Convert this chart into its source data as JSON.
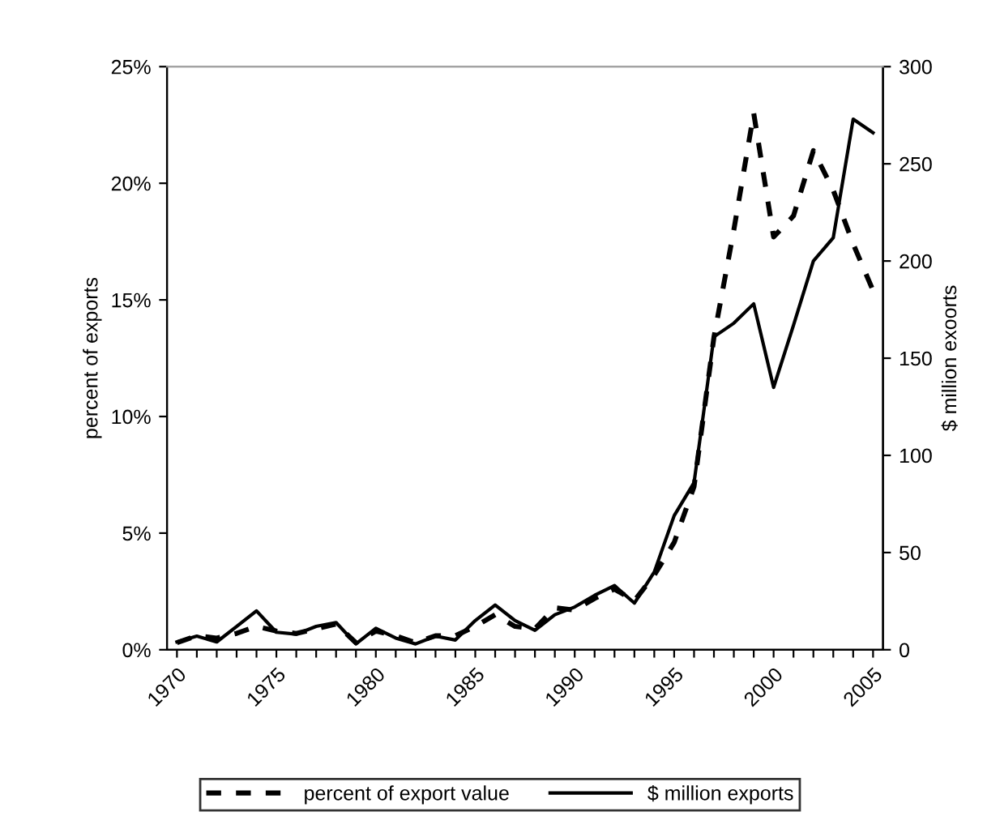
{
  "chart_data": {
    "type": "line",
    "categories": [
      "1970",
      null,
      null,
      null,
      null,
      "1975",
      null,
      null,
      null,
      null,
      "1980",
      null,
      null,
      null,
      null,
      "1985",
      null,
      null,
      null,
      null,
      "1990",
      null,
      null,
      null,
      null,
      "1995",
      null,
      null,
      null,
      null,
      "2000",
      null,
      null,
      null,
      null,
      "2005"
    ],
    "series": [
      {
        "name": "percent of export value",
        "color": "#000000",
        "line_style": "dashed",
        "values": [
          0.3,
          0.6,
          0.5,
          0.7,
          1.0,
          0.8,
          0.7,
          0.9,
          1.1,
          0.3,
          0.8,
          0.6,
          0.3,
          0.6,
          0.6,
          1.0,
          1.5,
          1.0,
          0.9,
          1.8,
          1.7,
          2.2,
          2.6,
          2.1,
          3.2,
          4.6,
          7.0,
          13.4,
          18.0,
          23.0,
          17.7,
          18.6,
          21.4,
          19.7,
          17.4,
          15.4
        ]
      },
      {
        "name": "$ million exports",
        "color": "#000000",
        "line_style": "solid",
        "axis": "y2",
        "values": [
          4,
          7,
          4,
          12,
          20,
          9,
          8,
          12,
          14,
          3,
          11,
          6,
          3,
          7,
          5,
          15,
          23,
          15,
          10,
          18,
          22,
          28,
          33,
          24,
          40,
          69,
          86,
          161,
          168,
          178,
          135,
          167,
          200,
          212,
          273,
          266
        ]
      }
    ],
    "ylabel": "percent of exports",
    "y2label": "$ million exoorts",
    "ylim": [
      0,
      25
    ],
    "yticks": [
      {
        "value": 0,
        "label": "0%"
      },
      {
        "value": 5,
        "label": "5%"
      },
      {
        "value": 10,
        "label": "10%"
      },
      {
        "value": 15,
        "label": "15%"
      },
      {
        "value": 20,
        "label": "20%"
      },
      {
        "value": 25,
        "label": "25%"
      }
    ],
    "y2lim": [
      0,
      300
    ],
    "y2ticks": [
      0,
      50,
      100,
      150,
      200,
      250,
      300
    ],
    "grid": false,
    "legend": "bottom",
    "marker": "none"
  }
}
